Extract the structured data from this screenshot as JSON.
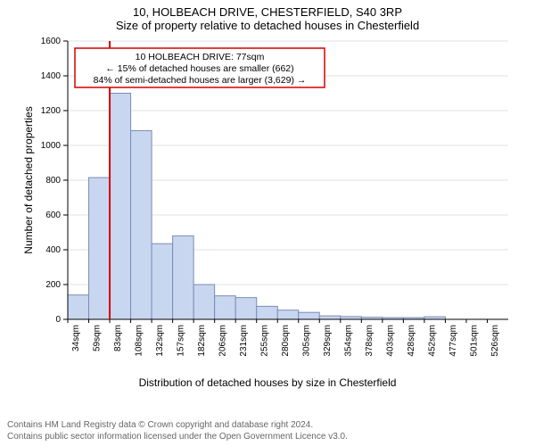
{
  "title_line1": "10, HOLBEACH DRIVE, CHESTERFIELD, S40 3RP",
  "title_line2": "Size of property relative to detached houses in Chesterfield",
  "chart": {
    "type": "histogram",
    "bar_fill": "#c9d6f0",
    "bar_stroke": "#7a8db5",
    "marker_line_color": "#d40000",
    "grid_color": "#e0e0e0",
    "axis_color": "#000000",
    "background_color": "#ffffff",
    "ylabel": "Number of detached properties",
    "xlabel": "Distribution of detached houses by size in Chesterfield",
    "ylim": [
      0,
      1600
    ],
    "ytick_step": 200,
    "x_categories": [
      "34sqm",
      "59sqm",
      "83sqm",
      "108sqm",
      "132sqm",
      "157sqm",
      "182sqm",
      "206sqm",
      "231sqm",
      "255sqm",
      "280sqm",
      "305sqm",
      "329sqm",
      "354sqm",
      "378sqm",
      "403sqm",
      "428sqm",
      "452sqm",
      "477sqm",
      "501sqm",
      "526sqm"
    ],
    "values": [
      140,
      815,
      1300,
      1085,
      435,
      480,
      200,
      135,
      125,
      75,
      53,
      40,
      20,
      16,
      12,
      10,
      10,
      15,
      0,
      0,
      0
    ],
    "marker_index": 2,
    "label_fontsize": 12,
    "tick_fontsize": 10,
    "title_fontsize": 13
  },
  "annotation": {
    "border_color": "#d40000",
    "bg_color": "#ffffff",
    "line1": "10 HOLBEACH DRIVE: 77sqm",
    "line2": "← 15% of detached houses are smaller (662)",
    "line3": "84% of semi-detached houses are larger (3,629) →"
  },
  "footer": {
    "line1": "Contains HM Land Registry data © Crown copyright and database right 2024.",
    "line2": "Contains public sector information licensed under the Open Government Licence v3.0."
  }
}
